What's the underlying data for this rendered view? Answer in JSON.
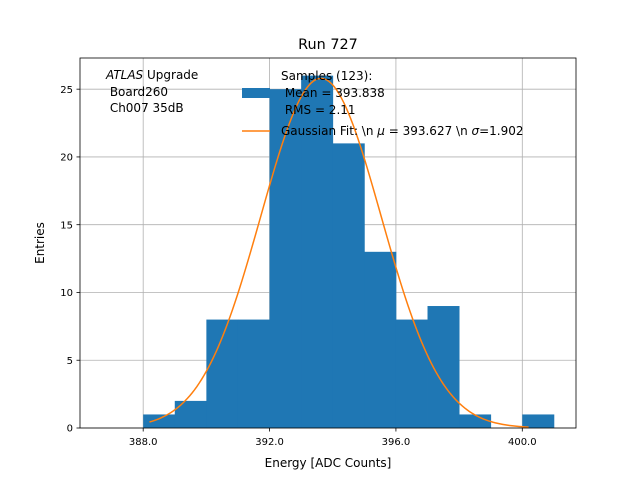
{
  "chart_data": {
    "type": "bar",
    "title": "Run 727",
    "xlabel": "Energy [ADC Counts]",
    "ylabel": "Entries",
    "xlim": [
      386.0,
      401.7
    ],
    "ylim": [
      0,
      27.3
    ],
    "xticks": [
      388.0,
      392.0,
      396.0,
      400.0
    ],
    "xtick_labels": [
      "388.0",
      "392.0",
      "396.0",
      "400.0"
    ],
    "yticks": [
      0,
      5,
      10,
      15,
      20,
      25
    ],
    "ytick_labels": [
      "0",
      "5",
      "10",
      "15",
      "20",
      "25"
    ],
    "grid": true,
    "legend_position": "top-right",
    "histogram": {
      "name": "Samples (123):\n Mean = 393.838\n RMS = 2.11",
      "color": "#1f77b4",
      "bin_edges": [
        388.0,
        389.0,
        390.0,
        391.0,
        392.0,
        393.0,
        394.0,
        395.0,
        396.0,
        397.0,
        398.0,
        399.0,
        400.0,
        401.0
      ],
      "counts": [
        1,
        2,
        8,
        8,
        25,
        26,
        21,
        13,
        8,
        9,
        1,
        0,
        1
      ]
    },
    "fit": {
      "name": "Gaussian Fit: \\n $\\mu$ = 393.627 \\n $\\sigma$=1.902",
      "color": "#ff7f0e",
      "mu": 393.627,
      "sigma": 1.902,
      "amplitude": 25.8,
      "x_range": [
        388.2,
        400.2
      ]
    },
    "annotation": {
      "line1_italic": "ATLAS",
      "line1_rest": " Upgrade",
      "line2": " Board260",
      "line3": " Ch007 35dB"
    }
  }
}
